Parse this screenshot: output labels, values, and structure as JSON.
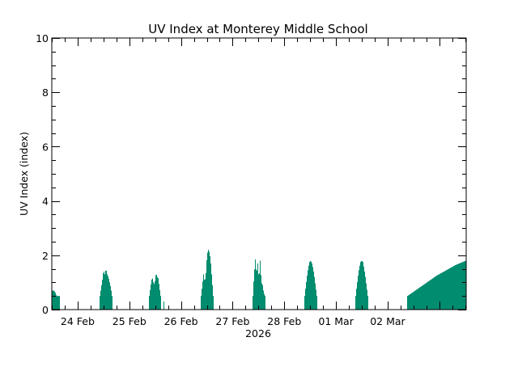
{
  "chart_data": {
    "type": "area",
    "title": "UV Index at Monterey Middle School",
    "xlabel": "2026",
    "ylabel": "UV Index (index)",
    "ylim": [
      0,
      10
    ],
    "yticks": [
      0,
      2,
      4,
      6,
      8,
      10
    ],
    "y_minor_step": 0.5,
    "xlim_days": [
      -0.5,
      7.52
    ],
    "xticks": [
      {
        "day": 0,
        "label": "24 Feb"
      },
      {
        "day": 1,
        "label": "25 Feb"
      },
      {
        "day": 2,
        "label": "26 Feb"
      },
      {
        "day": 3,
        "label": "27 Feb"
      },
      {
        "day": 4,
        "label": "28 Feb"
      },
      {
        "day": 5,
        "label": "01 Mar"
      },
      {
        "day": 6,
        "label": "02 Mar"
      }
    ],
    "x_minor_per_day": 4,
    "grid": false,
    "fill_color": "#008c6e",
    "series": [
      {
        "name": "UV Index",
        "daily_peaks": [
          {
            "date": "23 Feb",
            "peak": 0.7,
            "note": "tail only, partially shown"
          },
          {
            "date": "24 Feb",
            "peak": 1.5
          },
          {
            "date": "25 Feb",
            "peak": 1.35
          },
          {
            "date": "26 Feb",
            "peak": 2.2
          },
          {
            "date": "27 Feb",
            "peak": 1.85
          },
          {
            "date": "28 Feb",
            "peak": 1.8
          },
          {
            "date": "01 Mar",
            "peak": 1.8
          },
          {
            "date": "02 Mar",
            "peak": 1.8,
            "note": "rising, cut off at right edge"
          }
        ],
        "daylight_windows": [
          {
            "start": -0.5,
            "end": -0.35,
            "shape": "tail",
            "values": [
              0.7,
              0.7,
              0.65,
              0.5,
              0.5,
              0.5
            ]
          },
          {
            "start": 0.42,
            "end": 0.67,
            "shape": "jagged",
            "values": [
              0.5,
              0.8,
              1.1,
              1.45,
              1.3,
              1.5,
              1.3,
              1.2,
              1.0,
              0.8,
              0.5
            ]
          },
          {
            "start": 1.38,
            "end": 1.62,
            "shape": "jagged",
            "values": [
              0.5,
              0.8,
              1.1,
              1.15,
              0.9,
              1.05,
              1.35,
              1.2,
              1.15,
              0.8,
              0.5
            ]
          },
          {
            "start": 1.66,
            "end": 1.67,
            "shape": "spike",
            "values": [
              0.3
            ]
          },
          {
            "start": 2.38,
            "end": 2.63,
            "shape": "jagged",
            "values": [
              0.5,
              0.9,
              1.3,
              1.0,
              1.35,
              2.05,
              2.2,
              2.1,
              1.7,
              1.1,
              0.5
            ]
          },
          {
            "start": 3.39,
            "end": 3.64,
            "shape": "jagged",
            "values": [
              0.5,
              1.3,
              1.85,
              1.3,
              1.7,
              1.1,
              1.8,
              1.0,
              0.9,
              0.6,
              0.5
            ]
          },
          {
            "start": 4.38,
            "end": 4.63,
            "shape": "smooth",
            "values": [
              0.5,
              0.9,
              1.25,
              1.55,
              1.75,
              1.8,
              1.7,
              1.5,
              1.2,
              0.85,
              0.5
            ]
          },
          {
            "start": 5.38,
            "end": 5.63,
            "shape": "smooth",
            "values": [
              0.5,
              0.9,
              1.25,
              1.55,
              1.75,
              1.8,
              1.75,
              1.5,
              1.2,
              0.85,
              0.5
            ]
          },
          {
            "start": 6.38,
            "end": 7.52,
            "shape": "rising",
            "values": [
              0.5,
              0.75,
              1.0,
              1.25,
              1.45,
              1.65,
              1.8
            ]
          }
        ]
      }
    ],
    "legend": null
  }
}
